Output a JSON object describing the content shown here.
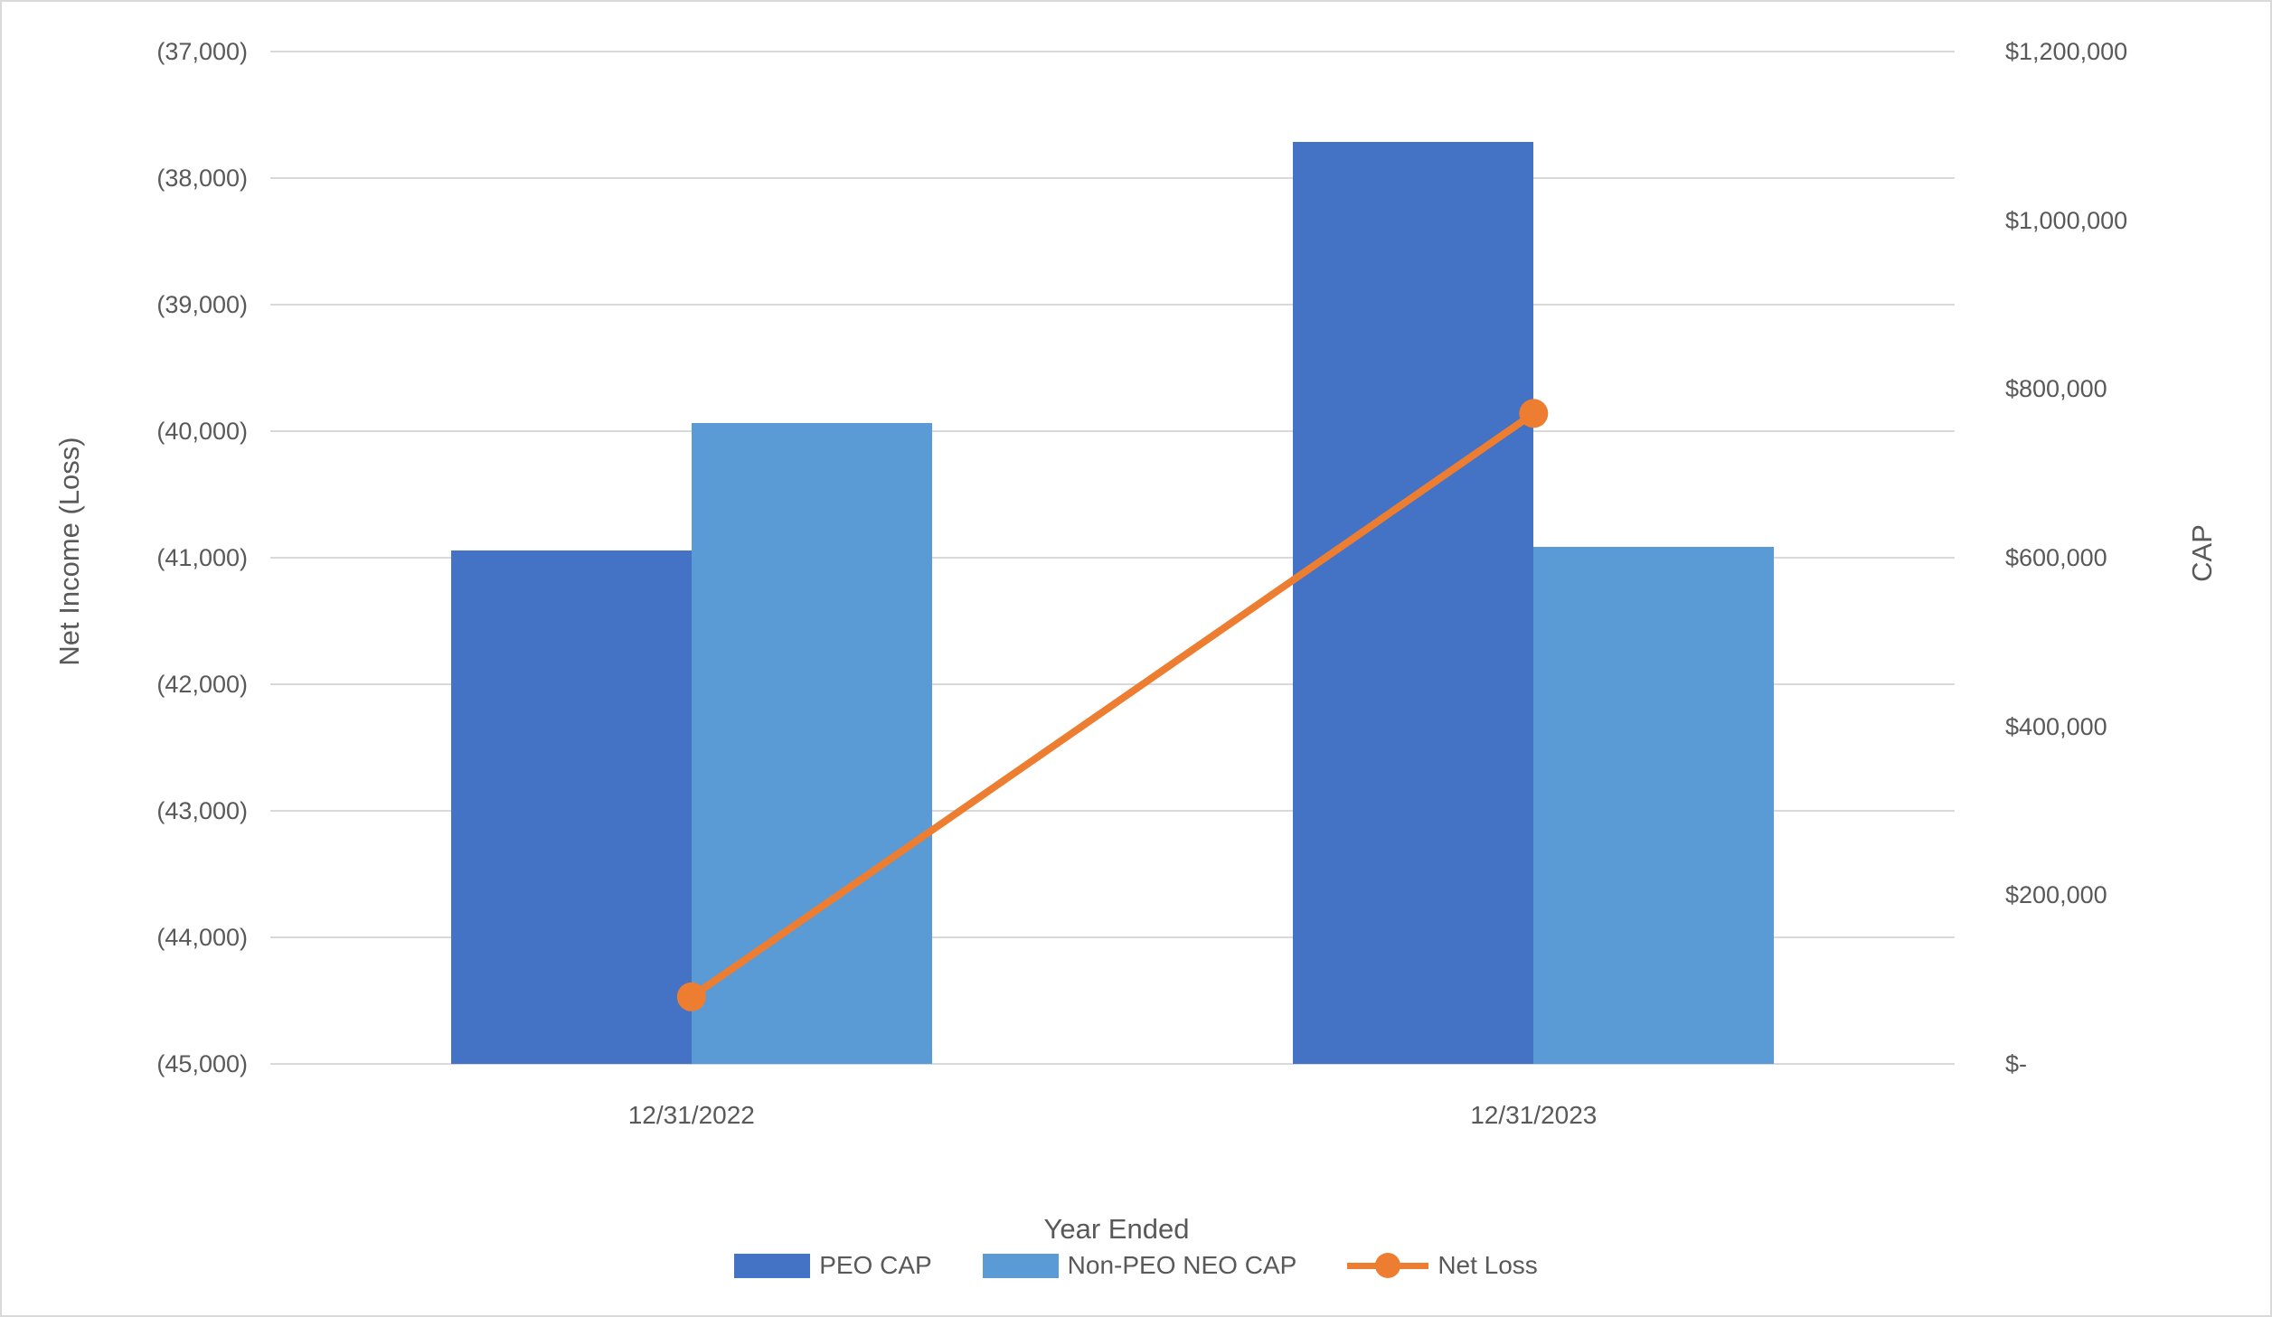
{
  "chart_data": {
    "type": "bar",
    "subtype": "combo-bar-line-dual-axis",
    "categories": [
      "12/31/2022",
      "12/31/2023"
    ],
    "series": [
      {
        "name": "PEO CAP",
        "kind": "bar",
        "axis": "right",
        "color": "#4472C4",
        "values": [
          608500,
          1093000
        ]
      },
      {
        "name": "Non-PEO NEO CAP",
        "kind": "bar",
        "axis": "right",
        "color": "#5B9BD5",
        "values": [
          760000,
          613000
        ]
      },
      {
        "name": "Net Loss",
        "kind": "line",
        "axis": "left",
        "color": "#ED7D31",
        "values": [
          -44470,
          -39860
        ]
      }
    ],
    "left_axis": {
      "title": "Net Income (Loss)",
      "min": -45000,
      "max": -37000,
      "step": 1000,
      "tick_labels_top_to_bottom": [
        "(37,000)",
        "(38,000)",
        "(39,000)",
        "(40,000)",
        "(41,000)",
        "(42,000)",
        "(43,000)",
        "(44,000)",
        "(45,000)"
      ]
    },
    "right_axis": {
      "title": "CAP",
      "min": 0,
      "max": 1200000,
      "step": 200000,
      "tick_labels_top_to_bottom": [
        "$1,200,000",
        "$1,000,000",
        "$800,000",
        "$600,000",
        "$400,000",
        "$200,000",
        "$-"
      ]
    },
    "x_axis": {
      "title": "Year Ended"
    },
    "legend": {
      "position": "bottom",
      "entries": [
        "PEO CAP",
        "Non-PEO NEO CAP",
        "Net Loss"
      ]
    },
    "grid": "horizontal-primary-only",
    "styles": {
      "gridline_color": "#d9d9d9",
      "text_color": "#595959",
      "background": "#ffffff"
    }
  }
}
